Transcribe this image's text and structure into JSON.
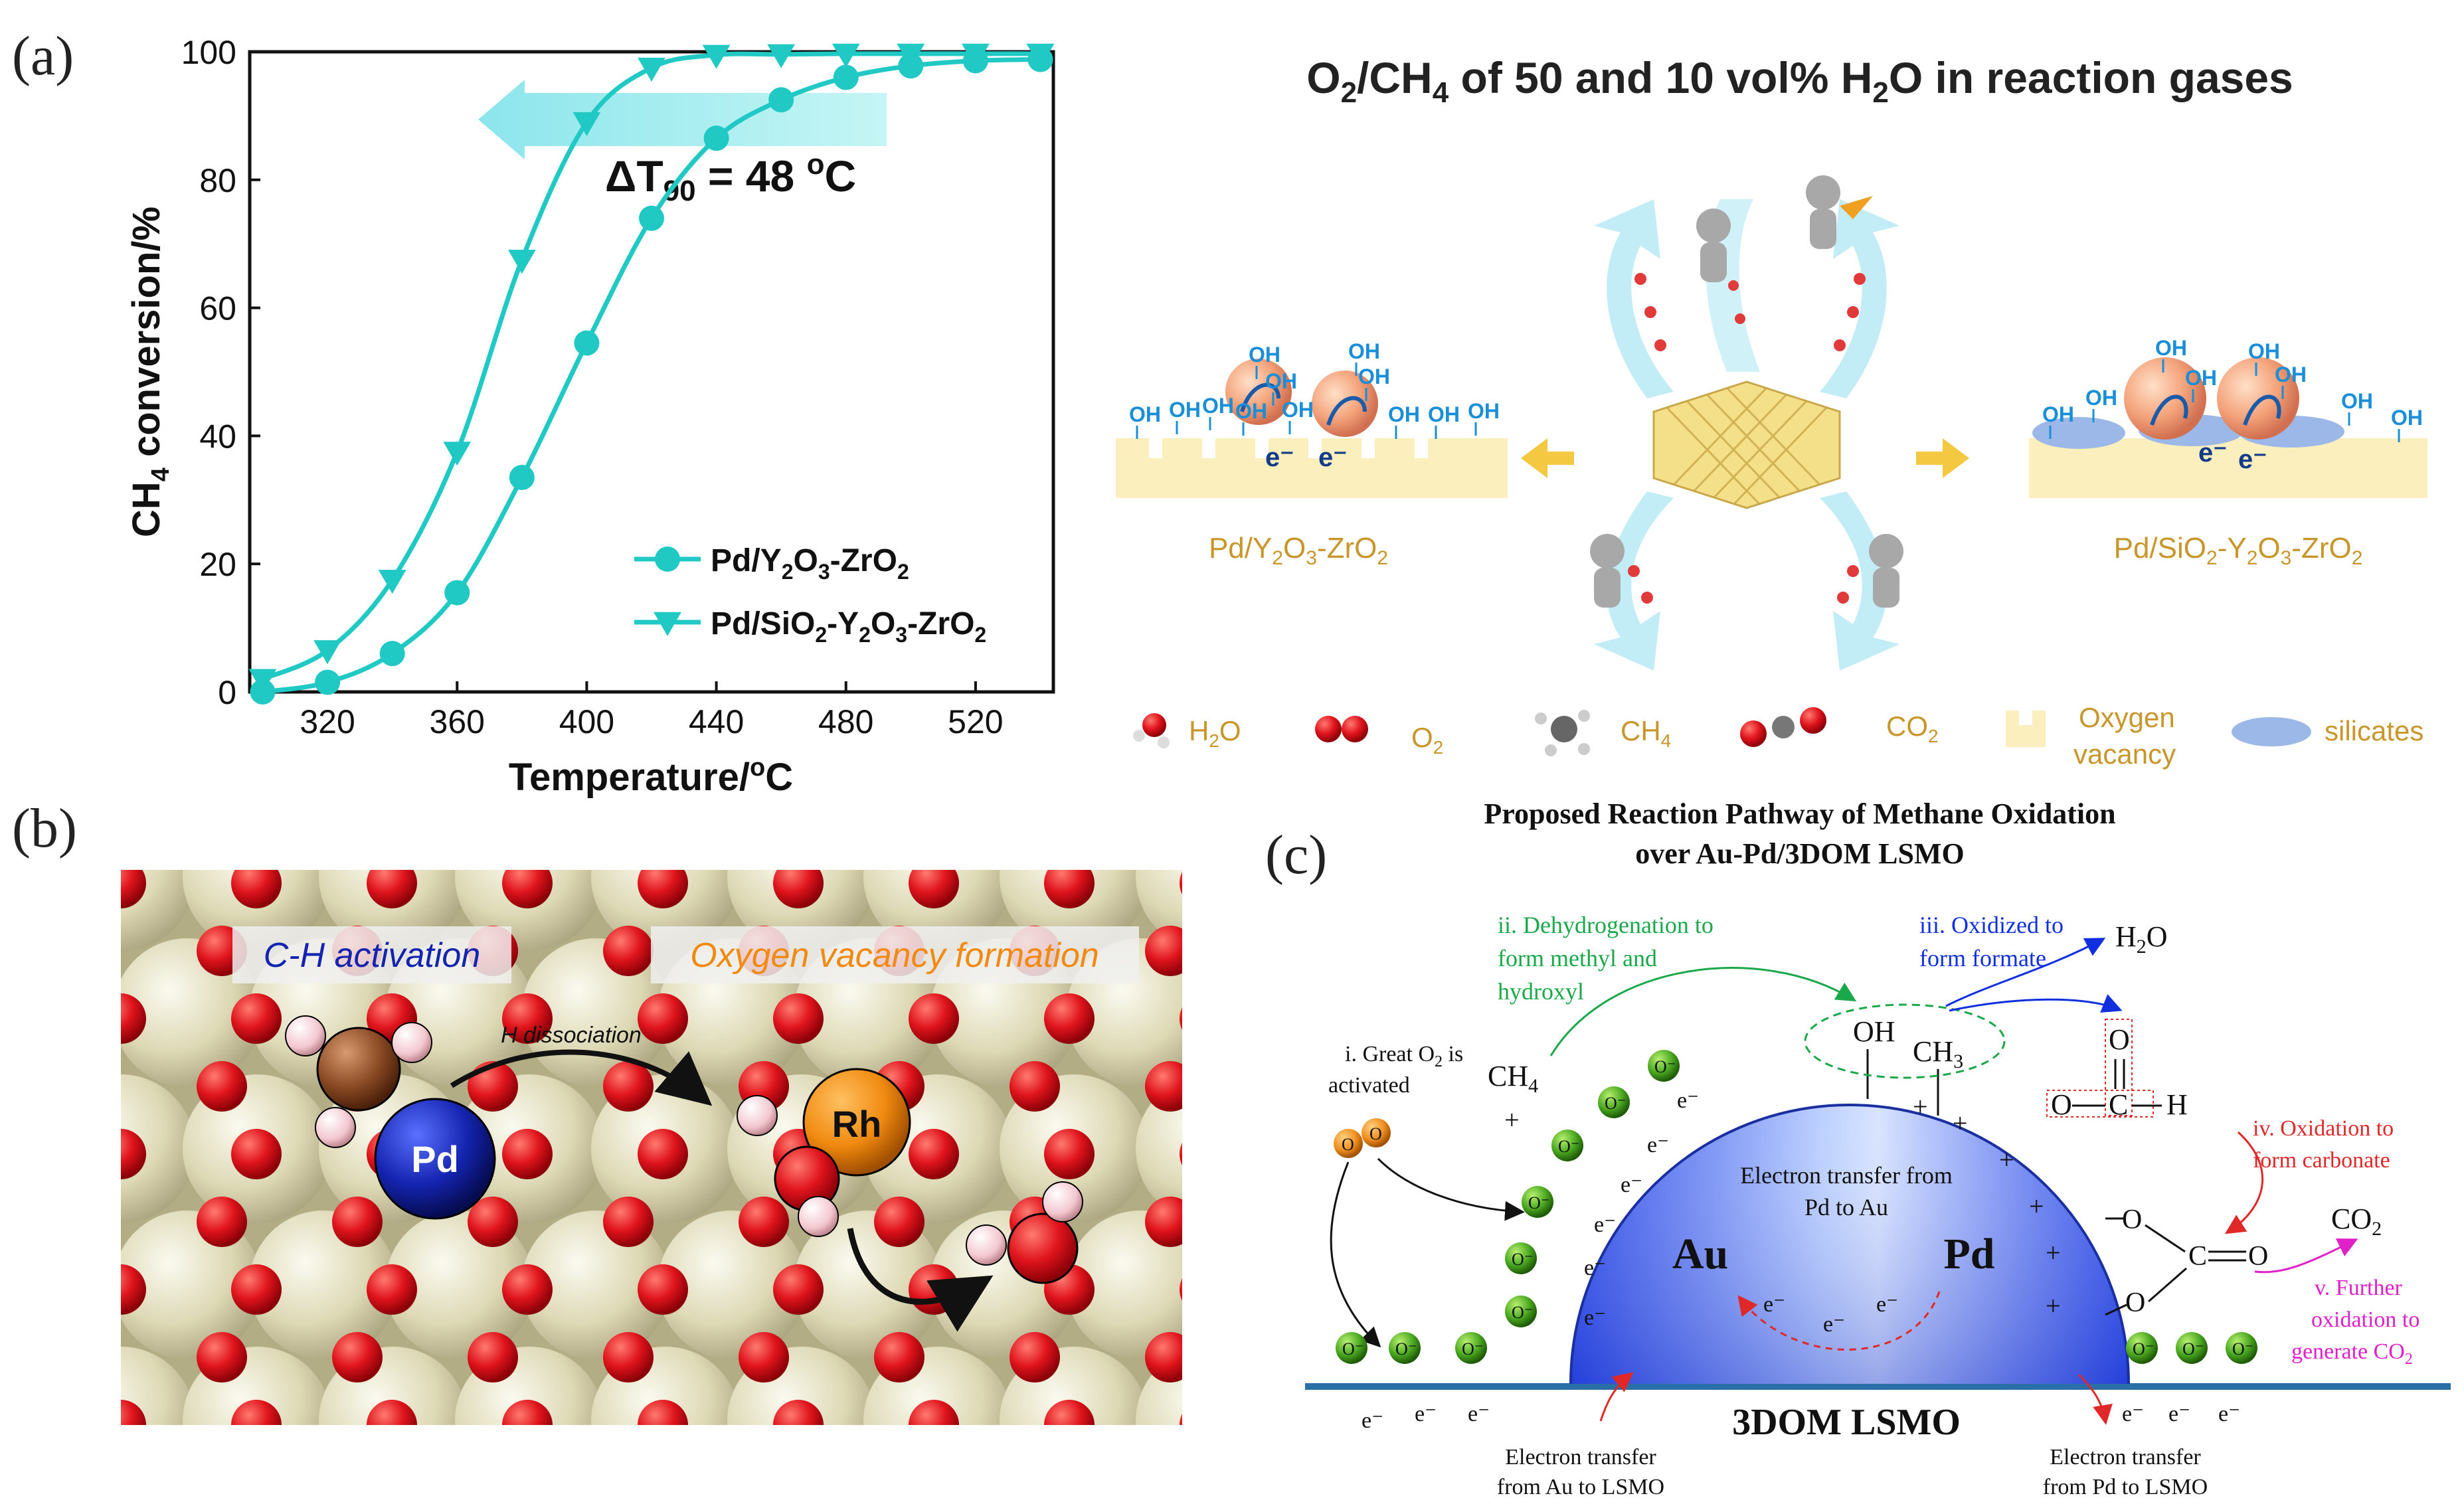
{
  "panel_labels": {
    "a": "(a)",
    "b": "(b)",
    "c": "(c)"
  },
  "chart_data": {
    "type": "line",
    "xlabel": "Temperature/°C",
    "ylabel": "CH4 conversion/%",
    "xlim": [
      296,
      544
    ],
    "ylim": [
      0,
      100
    ],
    "xticks": [
      320,
      360,
      400,
      440,
      480,
      520
    ],
    "yticks": [
      0,
      20,
      40,
      60,
      80,
      100
    ],
    "annotation": "ΔT90 = 48 °C",
    "legend_position": "bottom-right",
    "series": [
      {
        "name": "Pd/Y2O3-ZrO2",
        "marker": "circle",
        "x": [
          300,
          320,
          340,
          360,
          380,
          400,
          420,
          440,
          460,
          480,
          500,
          520,
          540
        ],
        "y": [
          0,
          1.5,
          6,
          15.5,
          33.5,
          54.5,
          74,
          86.5,
          92.5,
          96,
          97.8,
          98.6,
          98.8
        ]
      },
      {
        "name": "Pd/SiO2-Y2O3-ZrO2",
        "marker": "triangle-down",
        "x": [
          300,
          320,
          340,
          360,
          380,
          400,
          420,
          440,
          460,
          480,
          500,
          520,
          540
        ],
        "y": [
          2,
          6.5,
          17.5,
          37.5,
          67.5,
          89,
          97.5,
          99.5,
          99.6,
          99.7,
          99.7,
          99.7,
          99.7
        ]
      }
    ]
  },
  "panel_a_right": {
    "title": "O2/CH4 of 50 and 10 vol% H2O in reaction gases",
    "oh": "OH",
    "electron": "e⁻",
    "left_label": "Pd/Y2O3-ZrO2",
    "right_label": "Pd/SiO2-Y2O3-ZrO2",
    "legend": {
      "h2o": "H2O",
      "o2": "O2",
      "ch4": "CH4",
      "co2": "CO2",
      "vacancy1": "Oxygen",
      "vacancy2": "vacancy",
      "silicates": "silicates"
    }
  },
  "panel_b": {
    "ch_activation": "C-H activation",
    "vacancy_formation": "Oxygen vacancy formation",
    "h_dissociation": "H dissociation",
    "pd": "Pd",
    "rh": "Rh"
  },
  "panel_c": {
    "title1": "Proposed Reaction Pathway of Methane Oxidation",
    "title2": "over Au-Pd/3DOM LSMO",
    "step1a": "i. Great O2 is",
    "step1b": "activated",
    "step2a": "ii. Dehydrogenation to",
    "step2b": "form methyl and",
    "step2c": "hydroxyl",
    "step3a": "iii. Oxidized to",
    "step3b": "form formate",
    "step4a": "iv. Oxidation to",
    "step4b": "form carbonate",
    "step5a": "v. Further",
    "step5b": "oxidation to",
    "step5c": "generate CO2",
    "transfer_pd_au1": "Electron transfer from",
    "transfer_pd_au2": "Pd to Au",
    "au": "Au",
    "pd": "Pd",
    "support": "3DOM LSMO",
    "transfer_au_lsmo1": "Electron transfer",
    "transfer_au_lsmo2": "from Au to LSMO",
    "transfer_pd_lsmo1": "Electron transfer",
    "transfer_pd_lsmo2": "from Pd to LSMO",
    "ch4": "CH4",
    "oh": "OH",
    "ch3": "CH3",
    "h2o": "H2O",
    "co2": "CO2",
    "electron": "e⁻",
    "o_minus": "O⁻",
    "plus": "+",
    "o": "O",
    "c": "C",
    "h": "H"
  },
  "colors": {
    "series": "#20c9c4",
    "arrow": "#aeeef0",
    "o_red": "#e0141c",
    "pd_blue": "#1424b0",
    "rh_orange": "#f08a10",
    "sphere": "#ddd9b8",
    "dome": "#3a5cf0",
    "green_step": "#1aa84a",
    "blue_step": "#1030e0",
    "red_step": "#e02828",
    "magenta_step": "#e020c8",
    "support_line": "#2a6fa8",
    "gold_label": "#c8962a",
    "oh_blue": "#1a8fd8"
  }
}
